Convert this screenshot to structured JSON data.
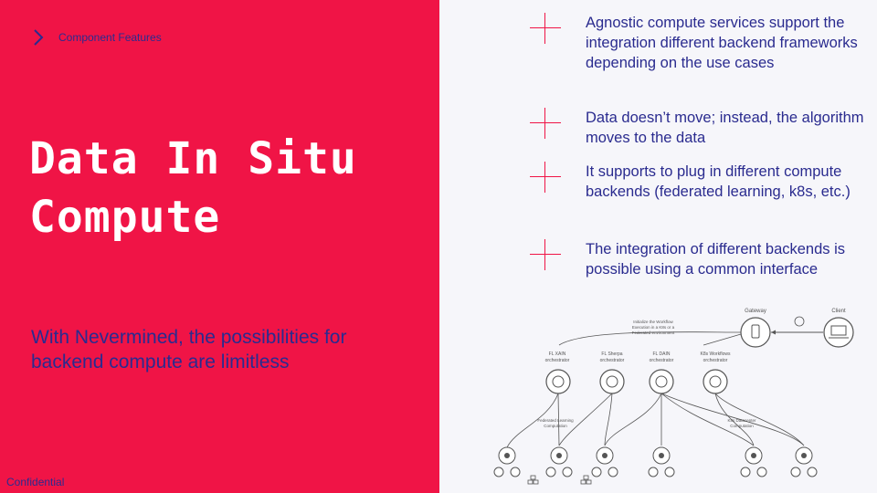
{
  "breadcrumb": {
    "label": "Component Features",
    "icon": "chevron-right-icon"
  },
  "title": {
    "line1": "Data In Situ",
    "line2": "Compute"
  },
  "subtitle": "With Nevermined, the possibilities for backend compute are limitless",
  "footer": {
    "label": "Confidential"
  },
  "features": [
    "Agnostic compute services support the integration different backend frameworks depending on the use cases",
    "Data doesn’t move; instead, the algorithm moves to the data",
    "It supports to plug in different compute backends (federated learning, k8s, etc.)",
    "The integration of different backends is possible using a common interface"
  ],
  "diagram": {
    "gateway": "Gateway",
    "client": "Client",
    "note_lines": [
      "Initialize the Workflow",
      "Execution in a K8s or a",
      "Federated environment"
    ],
    "orchestrators": [
      {
        "name": "FL XAIN",
        "role": "orchestrator"
      },
      {
        "name": "FL Sherpa",
        "role": "orchestrator"
      },
      {
        "name": "FL DAIN",
        "role": "orchestrator"
      },
      {
        "name": "K8s Workflows",
        "role": "orchestrator"
      }
    ],
    "fl_label": [
      "Federated Learning",
      "Computation"
    ],
    "k8s_label": [
      "K8s Datacenter",
      "Computation"
    ]
  },
  "colors": {
    "accent": "#f01446",
    "primary": "#2a2b8f",
    "background": "#f6f6fa"
  }
}
